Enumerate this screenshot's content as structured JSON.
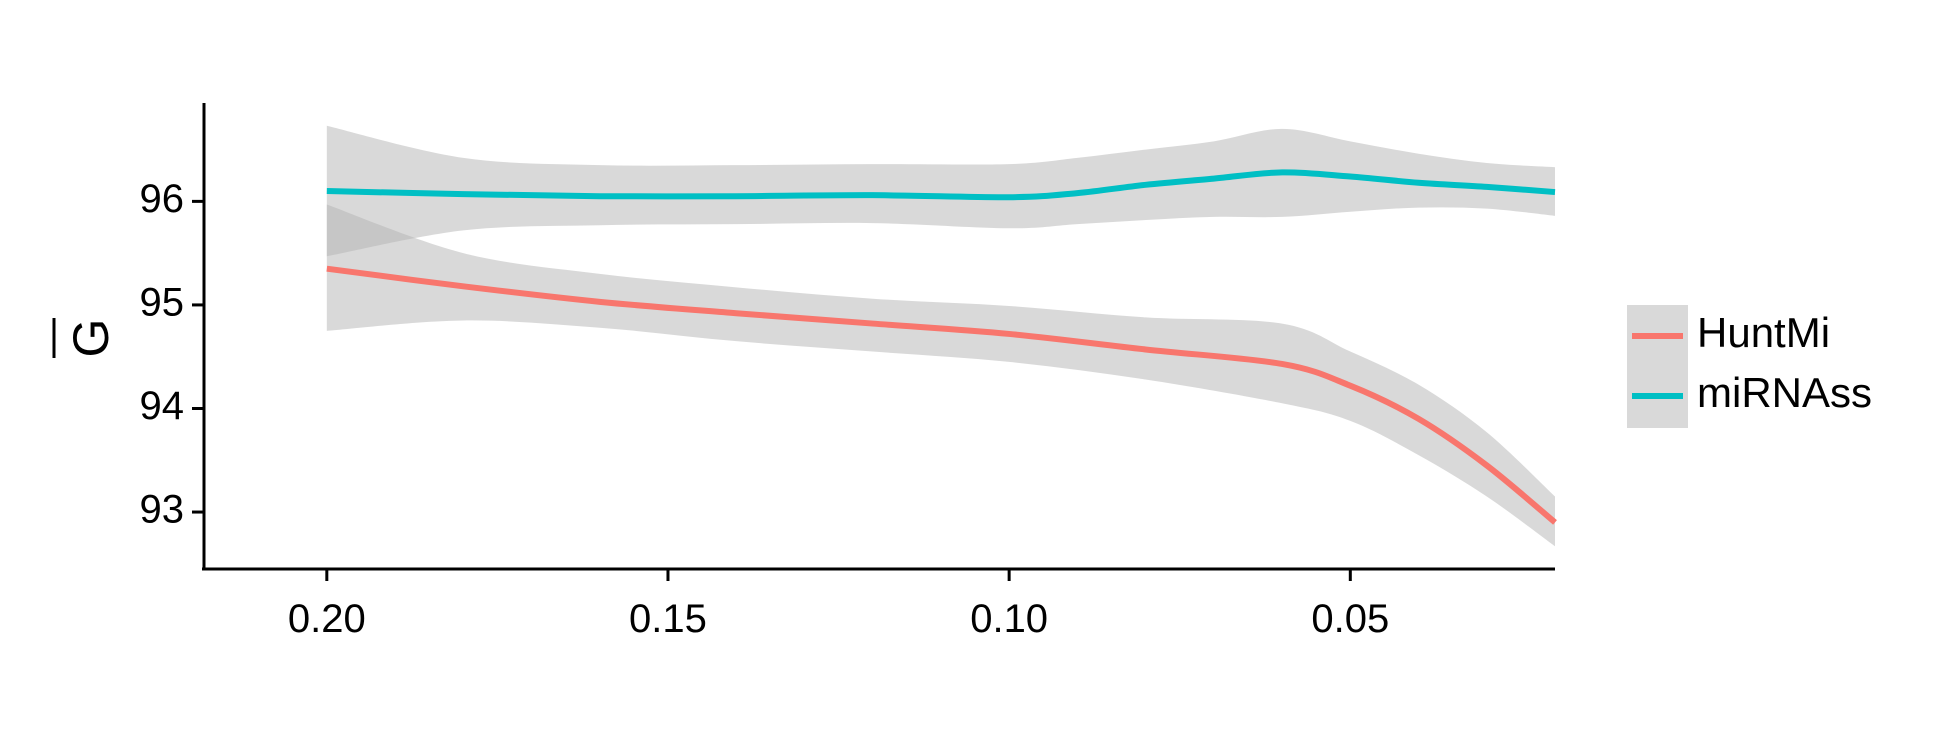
{
  "chart_data": {
    "type": "line",
    "title": "",
    "xlabel": "",
    "ylabel": "G",
    "ylabel_has_overbar": true,
    "x_reversed": true,
    "xlim": [
      0.218,
      0.02
    ],
    "ylim": [
      92.45,
      96.95
    ],
    "x_ticks": [
      0.2,
      0.15,
      0.1,
      0.05
    ],
    "x_tick_labels": [
      "0.20",
      "0.15",
      "0.10",
      "0.05"
    ],
    "y_ticks": [
      93,
      94,
      95,
      96
    ],
    "y_tick_labels": [
      "93",
      "94",
      "95",
      "96"
    ],
    "grid": false,
    "legend_position": "right",
    "band_color": "#b3b3b3",
    "series": [
      {
        "name": "HuntMi",
        "color": "#F8766D",
        "x": [
          0.2,
          0.18,
          0.16,
          0.14,
          0.12,
          0.1,
          0.08,
          0.06,
          0.05,
          0.04,
          0.03,
          0.02
        ],
        "y": [
          95.35,
          95.18,
          95.03,
          94.92,
          94.82,
          94.72,
          94.57,
          94.43,
          94.22,
          93.9,
          93.45,
          92.9
        ],
        "lower": [
          94.75,
          94.85,
          94.78,
          94.65,
          94.55,
          94.45,
          94.28,
          94.05,
          93.88,
          93.55,
          93.15,
          92.67
        ],
        "upper": [
          95.97,
          95.5,
          95.3,
          95.17,
          95.06,
          94.99,
          94.88,
          94.82,
          94.55,
          94.23,
          93.77,
          93.15
        ]
      },
      {
        "name": "miRNAss",
        "color": "#00BFC4",
        "x": [
          0.2,
          0.18,
          0.16,
          0.14,
          0.12,
          0.1,
          0.09,
          0.08,
          0.07,
          0.06,
          0.05,
          0.04,
          0.03,
          0.02
        ],
        "y": [
          96.1,
          96.07,
          96.05,
          96.05,
          96.06,
          96.04,
          96.08,
          96.16,
          96.22,
          96.28,
          96.24,
          96.18,
          96.14,
          96.09
        ],
        "lower": [
          95.47,
          95.72,
          95.77,
          95.78,
          95.79,
          95.74,
          95.78,
          95.82,
          95.85,
          95.85,
          95.9,
          95.94,
          95.93,
          95.86
        ],
        "upper": [
          96.73,
          96.42,
          96.35,
          96.35,
          96.36,
          96.36,
          96.42,
          96.5,
          96.58,
          96.7,
          96.58,
          96.46,
          96.37,
          96.33
        ]
      }
    ]
  }
}
